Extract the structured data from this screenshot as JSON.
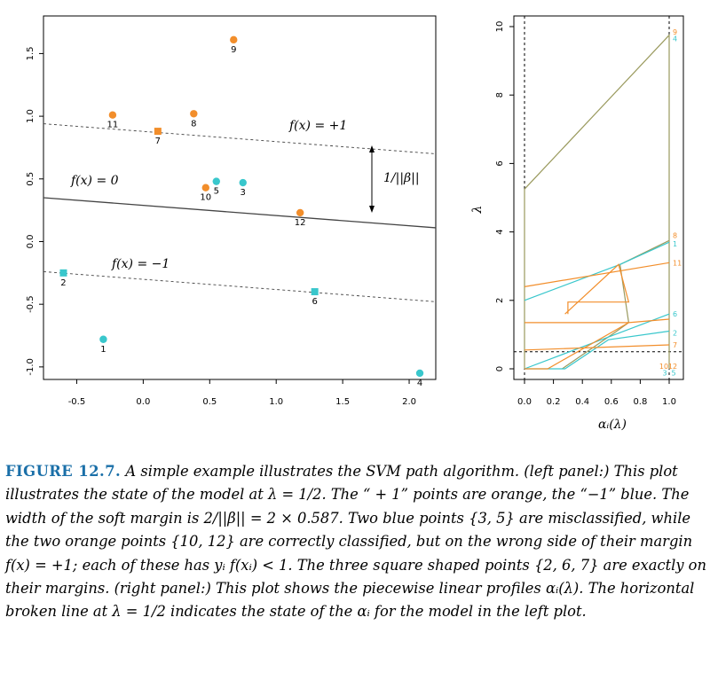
{
  "chart_data": [
    {
      "type": "scatter",
      "title": "",
      "xlabel": "",
      "ylabel": "",
      "xlim": [
        -0.75,
        2.2
      ],
      "ylim": [
        -1.1,
        1.8
      ],
      "x_ticks": [
        "-0.5",
        "0.0",
        "0.5",
        "1.0",
        "1.5",
        "2.0"
      ],
      "y_ticks": [
        "-1.0",
        "-0.5",
        "0.0",
        "0.5",
        "1.0",
        "1.5"
      ],
      "points": [
        {
          "id": "1",
          "x": -0.3,
          "y": -0.78,
          "class": "blue",
          "shape": "circle",
          "label_pos": "below"
        },
        {
          "id": "2",
          "x": -0.6,
          "y": -0.25,
          "class": "blue",
          "shape": "square",
          "label_pos": "below"
        },
        {
          "id": "3",
          "x": 0.75,
          "y": 0.47,
          "class": "blue",
          "shape": "circle",
          "label_pos": "below"
        },
        {
          "id": "4",
          "x": 2.08,
          "y": -1.05,
          "class": "blue",
          "shape": "circle",
          "label_pos": "below"
        },
        {
          "id": "5",
          "x": 0.55,
          "y": 0.48,
          "class": "blue",
          "shape": "circle",
          "label_pos": "below"
        },
        {
          "id": "6",
          "x": 1.29,
          "y": -0.4,
          "class": "blue",
          "shape": "square",
          "label_pos": "below"
        },
        {
          "id": "7",
          "x": 0.11,
          "y": 0.88,
          "class": "orange",
          "shape": "square",
          "label_pos": "below"
        },
        {
          "id": "8",
          "x": 0.38,
          "y": 1.02,
          "class": "orange",
          "shape": "circle",
          "label_pos": "below"
        },
        {
          "id": "9",
          "x": 0.68,
          "y": 1.61,
          "class": "orange",
          "shape": "circle",
          "label_pos": "below"
        },
        {
          "id": "10",
          "x": 0.47,
          "y": 0.43,
          "class": "orange",
          "shape": "circle",
          "label_pos": "below"
        },
        {
          "id": "11",
          "x": -0.23,
          "y": 1.01,
          "class": "orange",
          "shape": "circle",
          "label_pos": "below"
        },
        {
          "id": "12",
          "x": 1.18,
          "y": 0.23,
          "class": "orange",
          "shape": "circle",
          "label_pos": "below"
        }
      ],
      "lines": [
        {
          "name": "f(x) = +1",
          "y_left": 0.94,
          "y_right": 0.7,
          "style": "dashed"
        },
        {
          "name": "f(x) = 0",
          "y_left": 0.35,
          "y_right": 0.11,
          "style": "solid"
        },
        {
          "name": "f(x) = −1",
          "y_left": -0.24,
          "y_right": -0.48,
          "style": "dashed"
        }
      ],
      "margin_annotation": "1/||β||",
      "colors": {
        "orange": "#f28e2b",
        "blue": "#39c7cc",
        "line": "#444444"
      }
    },
    {
      "type": "line",
      "title": "",
      "xlabel": "αᵢ(λ)",
      "ylabel": "λ",
      "xlim": [
        0,
        1
      ],
      "ylim": [
        0,
        10
      ],
      "x_ticks": [
        "0.0",
        "0.2",
        "0.4",
        "0.6",
        "0.8",
        "1.0"
      ],
      "y_ticks": [
        "0",
        "2",
        "4",
        "6",
        "8",
        "10"
      ],
      "reference_lines": [
        {
          "orientation": "vertical",
          "x": 0,
          "style": "dashed"
        },
        {
          "orientation": "vertical",
          "x": 1,
          "style": "dashed"
        },
        {
          "orientation": "horizontal",
          "y": 0.5,
          "style": "dashed"
        }
      ],
      "series": [
        {
          "color": "#9a9a5e",
          "points": [
            [
              0,
              0
            ],
            [
              0,
              5.25
            ],
            [
              1,
              9.75
            ],
            [
              1,
              0
            ]
          ]
        },
        {
          "color": "#9a9a5e",
          "points": [
            [
              0.26,
              0
            ],
            [
              0.62,
              1.05
            ],
            [
              0.72,
              1.35
            ],
            [
              0.66,
              3.05
            ],
            [
              1,
              3.75
            ]
          ]
        },
        {
          "color": "#39c7cc",
          "points": [
            [
              0,
              0
            ],
            [
              0.28,
              0
            ],
            [
              0.58,
              0.85
            ],
            [
              1,
              1.1
            ]
          ]
        },
        {
          "color": "#39c7cc",
          "points": [
            [
              0,
              0
            ],
            [
              1,
              1.6
            ]
          ]
        },
        {
          "color": "#39c7cc",
          "points": [
            [
              0,
              2
            ],
            [
              0.66,
              3.05
            ],
            [
              1,
              3.7
            ]
          ]
        },
        {
          "color": "#f28e2b",
          "points": [
            [
              0,
              0.55
            ],
            [
              1,
              0.7
            ]
          ]
        },
        {
          "color": "#f28e2b",
          "points": [
            [
              0,
              1.35
            ],
            [
              0.72,
              1.35
            ],
            [
              1,
              1.45
            ]
          ]
        },
        {
          "color": "#f28e2b",
          "points": [
            [
              0.28,
              1.6
            ],
            [
              0.65,
              3.05
            ],
            [
              0.72,
              1.95
            ],
            [
              0.3,
              1.95
            ],
            [
              0.3,
              1.6
            ]
          ]
        },
        {
          "color": "#f28e2b",
          "points": [
            [
              0,
              2.4
            ],
            [
              1,
              3.1
            ]
          ]
        },
        {
          "color": "#f28e2b",
          "points": [
            [
              0,
              0
            ],
            [
              0.16,
              0
            ],
            [
              0.72,
              1.35
            ]
          ]
        }
      ],
      "end_labels": [
        {
          "text": "9",
          "y": 9.85,
          "color": "#f28e2b"
        },
        {
          "text": "4",
          "y": 9.65,
          "color": "#39c7cc"
        },
        {
          "text": "8",
          "y": 3.9,
          "color": "#f28e2b"
        },
        {
          "text": "1",
          "y": 3.65,
          "color": "#39c7cc"
        },
        {
          "text": "11",
          "y": 3.1,
          "color": "#f28e2b"
        },
        {
          "text": "6",
          "y": 1.6,
          "color": "#39c7cc"
        },
        {
          "text": "2",
          "y": 1.05,
          "color": "#39c7cc"
        },
        {
          "text": "7",
          "y": 0.7,
          "color": "#f28e2b"
        },
        {
          "text": "10",
          "y": 0.08,
          "color": "#f28e2b"
        },
        {
          "text": "12",
          "y": 0.08,
          "color": "#f28e2b"
        },
        {
          "text": "3",
          "y": -0.12,
          "color": "#39c7cc"
        },
        {
          "text": "5",
          "y": -0.12,
          "color": "#39c7cc"
        }
      ]
    }
  ],
  "caption": {
    "label": "FIGURE 12.7.",
    "text": "A simple example illustrates the SVM path algorithm. (left panel:) This plot illustrates the state of the model at λ = 1/2. The “ + 1” points are orange, the “−1” blue. The width of the soft margin is 2/||β|| = 2 × 0.587. Two blue points {3, 5} are misclassified, while the two orange points {10, 12} are correctly classified, but on the wrong side of their margin f(x) = +1; each of these has yᵢ f(xᵢ) < 1. The three square shaped points {2, 6, 7} are exactly on their margins. (right panel:) This plot shows the piecewise linear profiles αᵢ(λ). The horizontal broken line at λ = 1/2 indicates the state of the αᵢ for the model in the left plot."
  }
}
